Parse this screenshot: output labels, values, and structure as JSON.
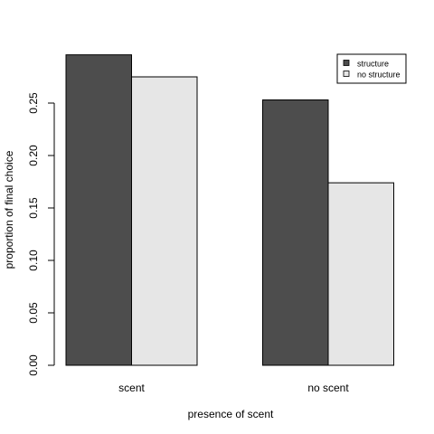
{
  "chart_data": {
    "type": "bar",
    "categories": [
      "scent",
      "no scent"
    ],
    "series": [
      {
        "name": "structure",
        "values": [
          0.296,
          0.253
        ],
        "color": "#4d4d4d"
      },
      {
        "name": "no structure",
        "values": [
          0.275,
          0.174
        ],
        "color": "#e6e6e6"
      }
    ],
    "xlabel": "presence of scent",
    "ylabel": "proportion of final choice",
    "ylim": [
      0,
      0.3
    ],
    "yticks": [
      "0.00",
      "0.05",
      "0.10",
      "0.15",
      "0.20",
      "0.25"
    ],
    "ytick_values": [
      0,
      0.05,
      0.1,
      0.15,
      0.2,
      0.25
    ],
    "grid": false,
    "legend_position": "top-right"
  }
}
